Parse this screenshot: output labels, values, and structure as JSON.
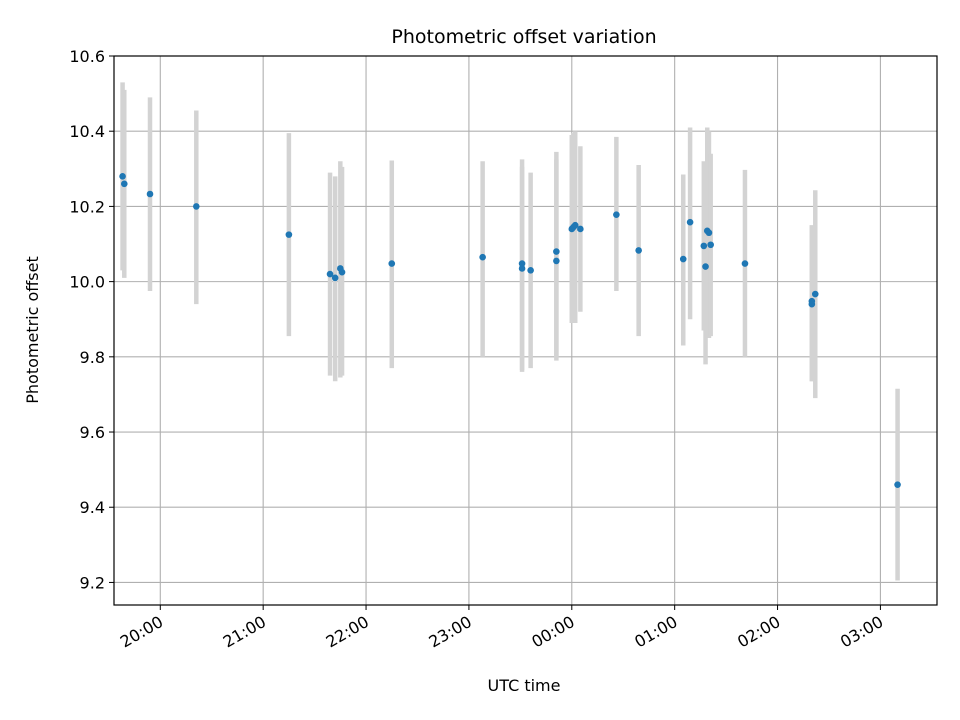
{
  "chart_data": {
    "type": "scatter",
    "title": "Photometric offset variation",
    "xlabel": "UTC time",
    "ylabel": "Photometric offset",
    "ylim": [
      9.14,
      10.6
    ],
    "xlim": [
      "19:33",
      "03:33"
    ],
    "xticks": [
      "20:00",
      "21:00",
      "22:00",
      "23:00",
      "00:00",
      "01:00",
      "02:00",
      "03:00"
    ],
    "yticks": [
      "9.2",
      "9.4",
      "9.6",
      "9.8",
      "10.0",
      "10.2",
      "10.4",
      "10.6"
    ],
    "grid": true,
    "colors": {
      "point": "#1f77b4",
      "errorbar": "#d3d3d3",
      "grid": "#b0b0b0"
    },
    "points": [
      {
        "x": "19:38",
        "y": 10.28,
        "ylow": 10.03,
        "yhigh": 10.53
      },
      {
        "x": "19:39",
        "y": 10.26,
        "ylow": 10.01,
        "yhigh": 10.51
      },
      {
        "x": "19:54",
        "y": 10.233,
        "ylow": 9.975,
        "yhigh": 10.49
      },
      {
        "x": "20:21",
        "y": 10.2,
        "ylow": 9.94,
        "yhigh": 10.455
      },
      {
        "x": "21:15",
        "y": 10.125,
        "ylow": 9.855,
        "yhigh": 10.395
      },
      {
        "x": "21:39",
        "y": 10.02,
        "ylow": 9.75,
        "yhigh": 10.29
      },
      {
        "x": "21:42",
        "y": 10.01,
        "ylow": 9.735,
        "yhigh": 10.28
      },
      {
        "x": "21:45",
        "y": 10.035,
        "ylow": 9.745,
        "yhigh": 10.32
      },
      {
        "x": "21:46",
        "y": 10.025,
        "ylow": 9.75,
        "yhigh": 10.305
      },
      {
        "x": "22:15",
        "y": 10.048,
        "ylow": 9.77,
        "yhigh": 10.322
      },
      {
        "x": "23:08",
        "y": 10.065,
        "ylow": 9.8,
        "yhigh": 10.32
      },
      {
        "x": "23:31",
        "y": 10.035,
        "ylow": 9.76,
        "yhigh": 10.305
      },
      {
        "x": "23:31",
        "y": 10.048,
        "ylow": 9.765,
        "yhigh": 10.325
      },
      {
        "x": "23:36",
        "y": 10.03,
        "ylow": 9.77,
        "yhigh": 10.29
      },
      {
        "x": "23:51",
        "y": 10.055,
        "ylow": 9.79,
        "yhigh": 10.325
      },
      {
        "x": "23:51",
        "y": 10.08,
        "ylow": 9.8,
        "yhigh": 10.345
      },
      {
        "x": "00:00",
        "y": 10.14,
        "ylow": 9.89,
        "yhigh": 10.39
      },
      {
        "x": "00:01",
        "y": 10.145,
        "ylow": 9.895,
        "yhigh": 10.395
      },
      {
        "x": "00:02",
        "y": 10.15,
        "ylow": 9.89,
        "yhigh": 10.4
      },
      {
        "x": "00:05",
        "y": 10.14,
        "ylow": 9.92,
        "yhigh": 10.36
      },
      {
        "x": "00:26",
        "y": 10.178,
        "ylow": 9.975,
        "yhigh": 10.385
      },
      {
        "x": "00:39",
        "y": 10.083,
        "ylow": 9.855,
        "yhigh": 10.31
      },
      {
        "x": "01:05",
        "y": 10.06,
        "ylow": 9.83,
        "yhigh": 10.285
      },
      {
        "x": "01:09",
        "y": 10.158,
        "ylow": 9.9,
        "yhigh": 10.41
      },
      {
        "x": "01:17",
        "y": 10.095,
        "ylow": 9.87,
        "yhigh": 10.32
      },
      {
        "x": "01:18",
        "y": 10.04,
        "ylow": 9.78,
        "yhigh": 10.3
      },
      {
        "x": "01:19",
        "y": 10.135,
        "ylow": 9.86,
        "yhigh": 10.41
      },
      {
        "x": "01:20",
        "y": 10.13,
        "ylow": 9.85,
        "yhigh": 10.4
      },
      {
        "x": "01:21",
        "y": 10.098,
        "ylow": 9.855,
        "yhigh": 10.34
      },
      {
        "x": "01:41",
        "y": 10.048,
        "ylow": 9.8,
        "yhigh": 10.297
      },
      {
        "x": "02:20",
        "y": 9.948,
        "ylow": 9.735,
        "yhigh": 10.15
      },
      {
        "x": "02:20",
        "y": 9.94,
        "ylow": 9.735,
        "yhigh": 10.15
      },
      {
        "x": "02:22",
        "y": 9.967,
        "ylow": 9.69,
        "yhigh": 10.243
      },
      {
        "x": "03:10",
        "y": 9.46,
        "ylow": 9.205,
        "yhigh": 9.715
      }
    ]
  }
}
